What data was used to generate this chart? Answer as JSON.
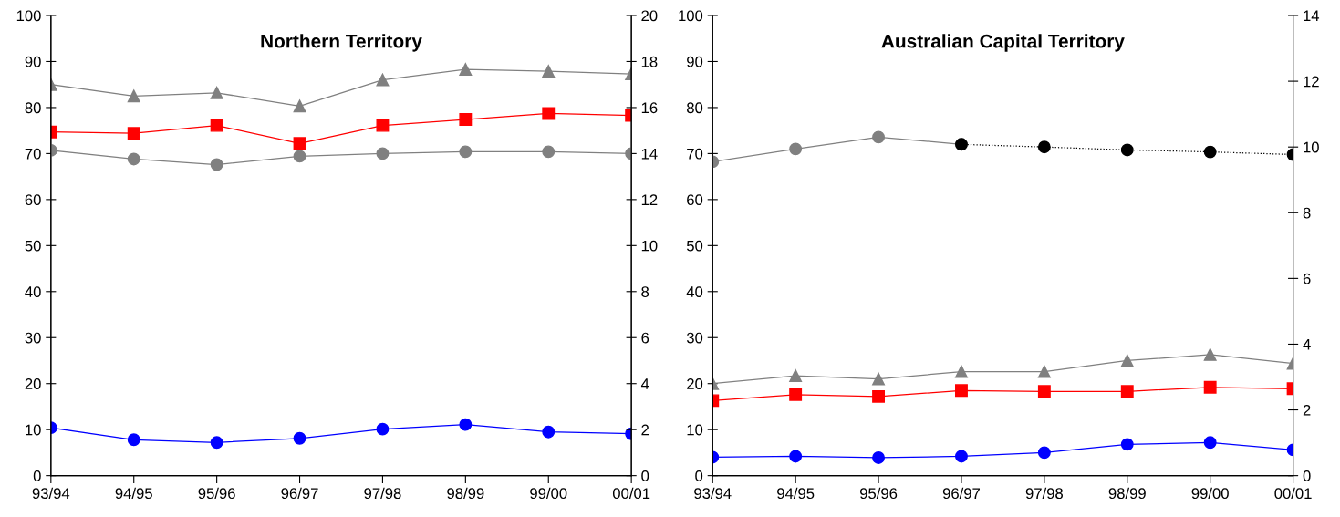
{
  "chart_data": [
    {
      "type": "line",
      "title": "Northern Territory",
      "categories": [
        "93/94",
        "94/95",
        "95/96",
        "96/97",
        "97/98",
        "98/99",
        "99/00",
        "00/01"
      ],
      "ylim": [
        0,
        100
      ],
      "yticks": [
        0,
        10,
        20,
        30,
        40,
        50,
        60,
        70,
        80,
        90,
        100
      ],
      "y2lim": [
        0,
        20
      ],
      "y2ticks": [
        0,
        2,
        4,
        6,
        8,
        10,
        12,
        14,
        16,
        18,
        20
      ],
      "grid": false,
      "legend": false,
      "series": [
        {
          "color": "#808080",
          "marker": "triangle",
          "values": [
            85.0,
            82.5,
            83.2,
            80.3,
            86.0,
            88.3,
            87.9,
            87.3
          ]
        },
        {
          "color": "#ff0000",
          "marker": "square",
          "values": [
            74.7,
            74.4,
            76.1,
            72.2,
            76.1,
            77.4,
            78.7,
            78.3
          ]
        },
        {
          "color": "#0000ff",
          "marker": "circle",
          "values": [
            10.4,
            7.8,
            7.2,
            8.1,
            10.1,
            11.1,
            9.5,
            9.1
          ]
        },
        {
          "color": "#808080",
          "marker": "circle",
          "axis": "y2",
          "line_style": "solid",
          "values": [
            14.14,
            13.76,
            13.52,
            13.88,
            14.0,
            14.08,
            14.08,
            14.0
          ]
        }
      ]
    },
    {
      "type": "line",
      "title": "Australian Capital Territory",
      "categories": [
        "93/94",
        "94/95",
        "95/96",
        "96/97",
        "97/98",
        "98/99",
        "99/00",
        "00/01"
      ],
      "ylim": [
        0,
        100
      ],
      "yticks": [
        0,
        10,
        20,
        30,
        40,
        50,
        60,
        70,
        80,
        90,
        100
      ],
      "y2lim": [
        0,
        14
      ],
      "y2ticks": [
        0,
        2,
        4,
        6,
        8,
        10,
        12,
        14
      ],
      "grid": false,
      "legend": false,
      "series": [
        {
          "color": "#808080",
          "marker": "triangle",
          "values": [
            20.0,
            21.7,
            21.0,
            22.6,
            22.6,
            25.0,
            26.3,
            24.4
          ]
        },
        {
          "color": "#ff0000",
          "marker": "square",
          "values": [
            16.3,
            17.6,
            17.2,
            18.5,
            18.3,
            18.3,
            19.2,
            18.9
          ]
        },
        {
          "color": "#0000ff",
          "marker": "circle",
          "values": [
            4.0,
            4.2,
            3.9,
            4.2,
            5.0,
            6.8,
            7.2,
            5.6
          ]
        },
        {
          "color": "#808080",
          "marker": "circle",
          "axis": "y2",
          "line_style": "solid",
          "values": [
            9.55,
            9.94,
            10.3,
            10.08,
            null,
            null,
            null,
            null
          ]
        },
        {
          "color": "#000000",
          "marker": "circle",
          "axis": "y2",
          "line_style": "dotted",
          "values": [
            null,
            null,
            null,
            10.08,
            10.0,
            9.91,
            9.85,
            9.77
          ]
        }
      ]
    }
  ]
}
